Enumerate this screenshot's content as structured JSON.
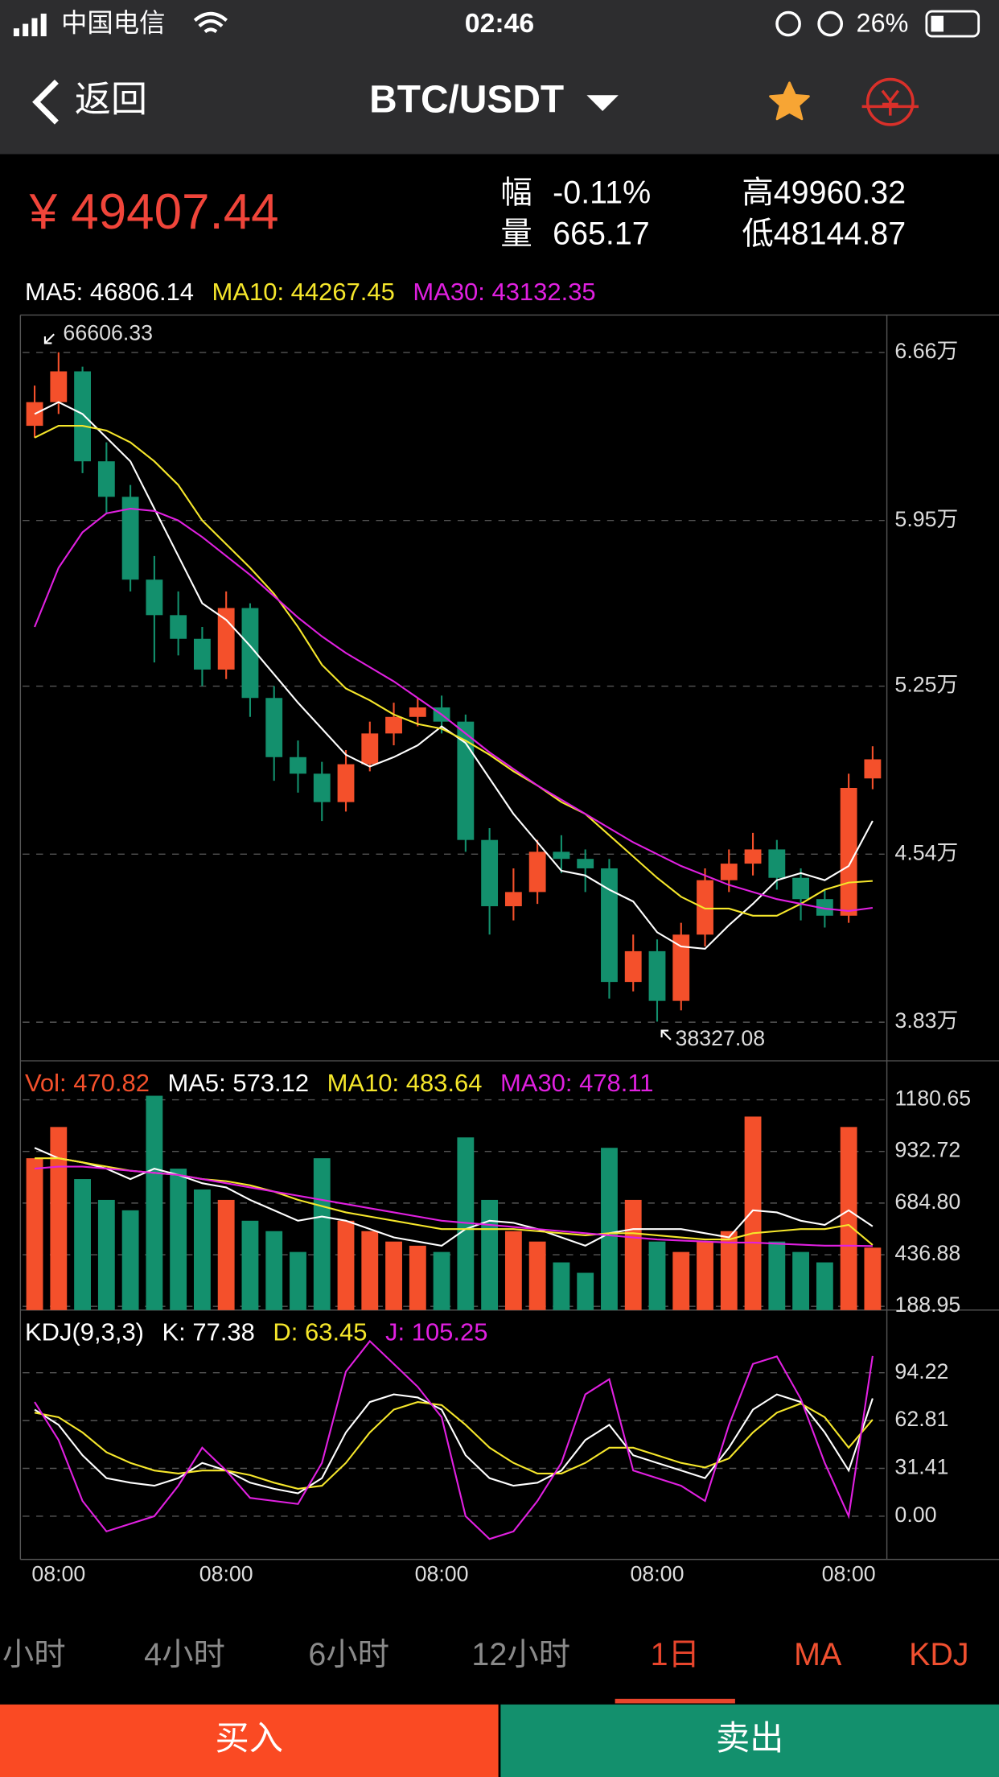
{
  "status_bar": {
    "carrier": "中国电信",
    "time": "02:46",
    "battery": "26%"
  },
  "nav": {
    "back": "返回",
    "pair": "BTC/USDT"
  },
  "ticker": {
    "price": "¥ 49407.44",
    "change_label": "幅",
    "change": "-0.11%",
    "volume_label": "量",
    "volume": "665.17",
    "high": "高49960.32",
    "low": "低48144.87"
  },
  "chart_data": [
    {
      "type": "candlestick",
      "up_color": "#f4502b",
      "down_color": "#13906d",
      "open": [
        63500,
        64500,
        65800,
        62000,
        60500,
        57000,
        55500,
        54500,
        53200,
        55800,
        52000,
        49500,
        48800,
        47600,
        49200,
        50500,
        51200,
        51600,
        51000,
        46000,
        43200,
        43800,
        45500,
        45200,
        44800,
        40000,
        41300,
        39200,
        42000,
        44300,
        45000,
        45600,
        44400,
        43500,
        42800,
        48600
      ],
      "high": [
        65200,
        66606.33,
        66000,
        62800,
        61000,
        58000,
        56500,
        55000,
        56500,
        56000,
        52500,
        50200,
        49300,
        49800,
        51000,
        51800,
        52000,
        52100,
        51300,
        46500,
        44800,
        46000,
        46200,
        45600,
        45200,
        42000,
        41800,
        42500,
        44800,
        45600,
        46300,
        46000,
        44800,
        43900,
        48800,
        49960.32
      ],
      "low": [
        63000,
        64000,
        61500,
        59800,
        56500,
        53500,
        53800,
        52500,
        52800,
        51200,
        48500,
        48000,
        46800,
        47200,
        48900,
        50000,
        50800,
        50500,
        45500,
        42000,
        42600,
        43300,
        44600,
        43800,
        39300,
        39600,
        38327.08,
        38800,
        41500,
        43800,
        44500,
        43900,
        42600,
        42300,
        42500,
        48144.87
      ],
      "close": [
        64500,
        65800,
        62000,
        60500,
        57000,
        55500,
        54500,
        53200,
        55800,
        52000,
        49500,
        48800,
        47600,
        49200,
        50500,
        51200,
        51600,
        51000,
        46000,
        43200,
        43800,
        45500,
        45200,
        44800,
        40000,
        41300,
        39200,
        42000,
        44300,
        45000,
        45600,
        44400,
        43500,
        42800,
        48200,
        49407.44
      ],
      "series": [
        {
          "name": "MA5: 46806.14",
          "color": "#ffffff",
          "values": [
            64000,
            64500,
            64000,
            63000,
            62000,
            60000,
            58000,
            56000,
            55300,
            54200,
            53000,
            51800,
            50700,
            49600,
            49100,
            49500,
            50000,
            50800,
            50100,
            48600,
            47100,
            45900,
            44700,
            44500,
            43900,
            43400,
            42100,
            41500,
            41400,
            42400,
            43300,
            44300,
            44600,
            44300,
            44900,
            46806.14
          ]
        },
        {
          "name": "MA10: 44267.45",
          "color": "#f5e62b",
          "values": [
            63000,
            63500,
            63500,
            63300,
            62800,
            62000,
            61000,
            59500,
            58500,
            57500,
            56400,
            55000,
            53400,
            52400,
            51900,
            51300,
            50900,
            50700,
            50200,
            49600,
            48900,
            48300,
            47600,
            47100,
            46200,
            45300,
            44400,
            43600,
            43100,
            43100,
            42800,
            42800,
            43300,
            43900,
            44200,
            44267.45
          ]
        },
        {
          "name": "MA30: 43132.35",
          "color": "#e020e0",
          "values": [
            55000,
            57500,
            59000,
            59800,
            60000,
            59900,
            59500,
            58800,
            58000,
            57200,
            56300,
            55400,
            54600,
            53900,
            53300,
            52700,
            52000,
            51300,
            50500,
            49700,
            49000,
            48300,
            47700,
            47100,
            46500,
            45900,
            45400,
            44900,
            44500,
            44100,
            43800,
            43500,
            43300,
            43100,
            43000,
            43132.35
          ]
        }
      ],
      "ylim": [
        36670,
        68180
      ],
      "yticks": [
        {
          "value": 66600,
          "label": "6.66万"
        },
        {
          "value": 59500,
          "label": "5.95万"
        },
        {
          "value": 52500,
          "label": "5.25万"
        },
        {
          "value": 45400,
          "label": "4.54万"
        },
        {
          "value": 38300,
          "label": "3.83万"
        }
      ],
      "grid": true
    },
    {
      "type": "bar",
      "title": "Vol: 470.82",
      "title_color": "#f4502b",
      "values": [
        900,
        1050,
        800,
        700,
        650,
        1200,
        850,
        750,
        700,
        600,
        550,
        450,
        900,
        600,
        550,
        500,
        480,
        450,
        1000,
        700,
        550,
        500,
        400,
        350,
        950,
        700,
        500,
        450,
        500,
        550,
        1100,
        500,
        450,
        400,
        1050,
        470.82
      ],
      "series": [
        {
          "name": "MA5: 573.12",
          "color": "#ffffff",
          "values": [
            950,
            900,
            880,
            850,
            800,
            850,
            820,
            780,
            760,
            700,
            650,
            600,
            620,
            600,
            560,
            520,
            500,
            480,
            560,
            600,
            590,
            560,
            520,
            480,
            540,
            560,
            560,
            560,
            540,
            520,
            650,
            640,
            600,
            580,
            650,
            573.12
          ]
        },
        {
          "name": "MA10: 483.64",
          "color": "#f5e62b",
          "values": [
            900,
            900,
            880,
            860,
            840,
            830,
            820,
            800,
            790,
            770,
            740,
            700,
            670,
            640,
            620,
            600,
            580,
            560,
            560,
            560,
            560,
            550,
            540,
            530,
            540,
            540,
            530,
            520,
            510,
            510,
            540,
            550,
            560,
            560,
            580,
            483.64
          ]
        },
        {
          "name": "MA30: 478.11",
          "color": "#e020e0",
          "values": [
            850,
            860,
            860,
            850,
            840,
            830,
            820,
            800,
            780,
            760,
            740,
            720,
            700,
            680,
            660,
            640,
            620,
            600,
            590,
            580,
            570,
            560,
            550,
            540,
            530,
            520,
            510,
            505,
            500,
            495,
            495,
            490,
            485,
            480,
            480,
            478.11
          ]
        }
      ],
      "ylim": [
        171,
        1368
      ],
      "yticks": [
        1180.65,
        932.72,
        {
          "value": 684.8,
          "label": "684.80"
        },
        436.88,
        188.95
      ],
      "grid": true
    },
    {
      "type": "line",
      "title": "KDJ(9,3,3)",
      "categories": [
        null,
        "08:00",
        null,
        null,
        null,
        null,
        null,
        null,
        "08:00",
        null,
        null,
        null,
        null,
        null,
        null,
        null,
        null,
        "08:00",
        null,
        null,
        null,
        null,
        null,
        null,
        null,
        null,
        "08:00",
        null,
        null,
        null,
        null,
        null,
        null,
        null,
        "08:00",
        null
      ],
      "series": [
        {
          "name": "K: 77.38",
          "color": "#ffffff",
          "values": [
            70,
            60,
            40,
            25,
            22,
            20,
            25,
            35,
            30,
            22,
            18,
            15,
            25,
            55,
            75,
            80,
            78,
            70,
            40,
            25,
            20,
            22,
            30,
            50,
            60,
            40,
            35,
            30,
            25,
            45,
            70,
            80,
            75,
            55,
            30,
            77.38
          ]
        },
        {
          "name": "D: 63.45",
          "color": "#f5e62b",
          "values": [
            68,
            65,
            55,
            42,
            35,
            30,
            28,
            30,
            30,
            27,
            22,
            18,
            20,
            35,
            55,
            70,
            75,
            73,
            60,
            45,
            35,
            28,
            28,
            35,
            45,
            45,
            40,
            35,
            32,
            38,
            55,
            68,
            74,
            65,
            45,
            63.45
          ]
        },
        {
          "name": "J: 105.25",
          "color": "#e020e0",
          "values": [
            75,
            50,
            10,
            -10,
            -5,
            0,
            20,
            45,
            30,
            12,
            10,
            8,
            35,
            95,
            115,
            100,
            85,
            65,
            0,
            -15,
            -10,
            10,
            35,
            80,
            90,
            30,
            25,
            20,
            10,
            60,
            100,
            105,
            77,
            35,
            0,
            105.25
          ]
        }
      ],
      "ylim": [
        -28.4,
        135.4
      ],
      "yticks": [
        94.22,
        62.81,
        31.41,
        {
          "value": 0,
          "label": "0.00"
        }
      ],
      "grid": true
    }
  ],
  "tabs": [
    "小时",
    "4小时",
    "6小时",
    "12小时",
    "1日",
    "MA",
    "KDJ"
  ],
  "buttons": {
    "buy": "买入",
    "sell": "卖出"
  }
}
